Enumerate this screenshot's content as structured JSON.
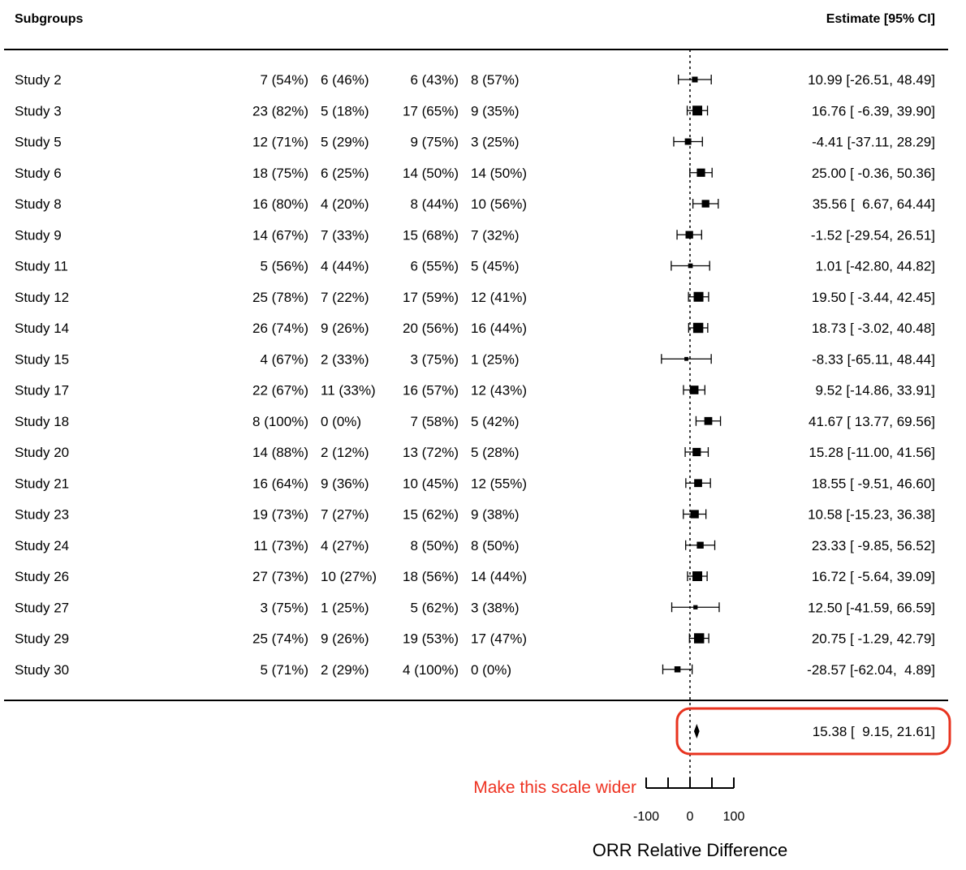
{
  "chart_data": {
    "type": "forest",
    "header": {
      "left": "Subgroups",
      "right": "Estimate [95% CI]"
    },
    "xlabel": "ORR Relative Difference",
    "xlim": [
      -100,
      100
    ],
    "ticks": [
      -100,
      -50,
      0,
      50,
      100
    ],
    "tick_labels": [
      "-100",
      "0",
      "100"
    ],
    "tick_label_values": [
      -100,
      0,
      100
    ],
    "rows": [
      {
        "study": "Study 2",
        "c1": "7 (54%)",
        "c2": "6 (46%)",
        "c3": "6 (43%)",
        "c4": "8 (57%)",
        "est": 10.99,
        "lo": -26.51,
        "hi": 48.49,
        "w": 0.45,
        "label": "10.99 [-26.51, 48.49]"
      },
      {
        "study": "Study 3",
        "c1": "23 (82%)",
        "c2": "5 (18%)",
        "c3": "17 (65%)",
        "c4": "9 (35%)",
        "est": 16.76,
        "lo": -6.39,
        "hi": 39.9,
        "w": 1.0,
        "label": "16.76 [ -6.39, 39.90]"
      },
      {
        "study": "Study 5",
        "c1": "12 (71%)",
        "c2": "5 (29%)",
        "c3": "9 (75%)",
        "c4": "3 (25%)",
        "est": -4.41,
        "lo": -37.11,
        "hi": 28.29,
        "w": 0.55,
        "label": "-4.41 [-37.11, 28.29]"
      },
      {
        "study": "Study 6",
        "c1": "18 (75%)",
        "c2": "6 (25%)",
        "c3": "14 (50%)",
        "c4": "14 (50%)",
        "est": 25.0,
        "lo": -0.36,
        "hi": 50.36,
        "w": 0.8,
        "label": "25.00 [ -0.36, 50.36]"
      },
      {
        "study": "Study 8",
        "c1": "16 (80%)",
        "c2": "4 (20%)",
        "c3": "8 (44%)",
        "c4": "10 (56%)",
        "est": 35.56,
        "lo": 6.67,
        "hi": 64.44,
        "w": 0.7,
        "label": "35.56 [  6.67, 64.44]"
      },
      {
        "study": "Study 9",
        "c1": "14 (67%)",
        "c2": "7 (33%)",
        "c3": "15 (68%)",
        "c4": "7 (32%)",
        "est": -1.52,
        "lo": -29.54,
        "hi": 26.51,
        "w": 0.7,
        "label": "-1.52 [-29.54, 26.51]"
      },
      {
        "study": "Study 11",
        "c1": "5 (56%)",
        "c2": "4 (44%)",
        "c3": "6 (55%)",
        "c4": "5 (45%)",
        "est": 1.01,
        "lo": -42.8,
        "hi": 44.82,
        "w": 0.3,
        "label": "1.01 [-42.80, 44.82]"
      },
      {
        "study": "Study 12",
        "c1": "25 (78%)",
        "c2": "7 (22%)",
        "c3": "17 (59%)",
        "c4": "12 (41%)",
        "est": 19.5,
        "lo": -3.44,
        "hi": 42.45,
        "w": 1.0,
        "label": "19.50 [ -3.44, 42.45]"
      },
      {
        "study": "Study 14",
        "c1": "26 (74%)",
        "c2": "9 (26%)",
        "c3": "20 (56%)",
        "c4": "16 (44%)",
        "est": 18.73,
        "lo": -3.02,
        "hi": 40.48,
        "w": 1.05,
        "label": "18.73 [ -3.02, 40.48]"
      },
      {
        "study": "Study 15",
        "c1": "4 (67%)",
        "c2": "2 (33%)",
        "c3": "3 (75%)",
        "c4": "1 (25%)",
        "est": -8.33,
        "lo": -65.11,
        "hi": 48.44,
        "w": 0.2,
        "label": "-8.33 [-65.11, 48.44]"
      },
      {
        "study": "Study 17",
        "c1": "22 (67%)",
        "c2": "11 (33%)",
        "c3": "16 (57%)",
        "c4": "12 (43%)",
        "est": 9.52,
        "lo": -14.86,
        "hi": 33.91,
        "w": 0.85,
        "label": "9.52 [-14.86, 33.91]"
      },
      {
        "study": "Study 18",
        "c1": "8 (100%)",
        "c2": "0 (0%)",
        "c3": "7 (58%)",
        "c4": "5 (42%)",
        "est": 41.67,
        "lo": 13.77,
        "hi": 69.56,
        "w": 0.75,
        "label": "41.67 [ 13.77, 69.56]"
      },
      {
        "study": "Study 20",
        "c1": "14 (88%)",
        "c2": "2 (12%)",
        "c3": "13 (72%)",
        "c4": "5 (28%)",
        "est": 15.28,
        "lo": -11.0,
        "hi": 41.56,
        "w": 0.8,
        "label": "15.28 [-11.00, 41.56]"
      },
      {
        "study": "Study 21",
        "c1": "16 (64%)",
        "c2": "9 (36%)",
        "c3": "10 (45%)",
        "c4": "12 (55%)",
        "est": 18.55,
        "lo": -9.51,
        "hi": 46.6,
        "w": 0.75,
        "label": "18.55 [ -9.51, 46.60]"
      },
      {
        "study": "Study 23",
        "c1": "19 (73%)",
        "c2": "7 (27%)",
        "c3": "15 (62%)",
        "c4": "9 (38%)",
        "est": 10.58,
        "lo": -15.23,
        "hi": 36.38,
        "w": 0.8,
        "label": "10.58 [-15.23, 36.38]"
      },
      {
        "study": "Study 24",
        "c1": "11 (73%)",
        "c2": "4 (27%)",
        "c3": "8 (50%)",
        "c4": "8 (50%)",
        "est": 23.33,
        "lo": -9.85,
        "hi": 56.52,
        "w": 0.6,
        "label": "23.33 [ -9.85, 56.52]"
      },
      {
        "study": "Study 26",
        "c1": "27 (73%)",
        "c2": "10 (27%)",
        "c3": "18 (56%)",
        "c4": "14 (44%)",
        "est": 16.72,
        "lo": -5.64,
        "hi": 39.09,
        "w": 1.0,
        "label": "16.72 [ -5.64, 39.09]"
      },
      {
        "study": "Study 27",
        "c1": "3 (75%)",
        "c2": "1 (25%)",
        "c3": "5 (62%)",
        "c4": "3 (38%)",
        "est": 12.5,
        "lo": -41.59,
        "hi": 66.59,
        "w": 0.25,
        "label": "12.50 [-41.59, 66.59]"
      },
      {
        "study": "Study 29",
        "c1": "25 (74%)",
        "c2": "9 (26%)",
        "c3": "19 (53%)",
        "c4": "17 (47%)",
        "est": 20.75,
        "lo": -1.29,
        "hi": 42.79,
        "w": 1.05,
        "label": "20.75 [ -1.29, 42.79]"
      },
      {
        "study": "Study 30",
        "c1": "5 (71%)",
        "c2": "2 (29%)",
        "c3": "4 (100%)",
        "c4": "0 (0%)",
        "est": -28.57,
        "lo": -62.04,
        "hi": 4.89,
        "w": 0.5,
        "label": "-28.57 [-62.04,  4.89]"
      }
    ],
    "summary": {
      "est": 15.38,
      "lo": 9.15,
      "hi": 21.61,
      "label": "15.38 [  9.15, 21.61]"
    },
    "annotation": {
      "text": "Make this scale wider",
      "color": "#ee3322"
    }
  }
}
